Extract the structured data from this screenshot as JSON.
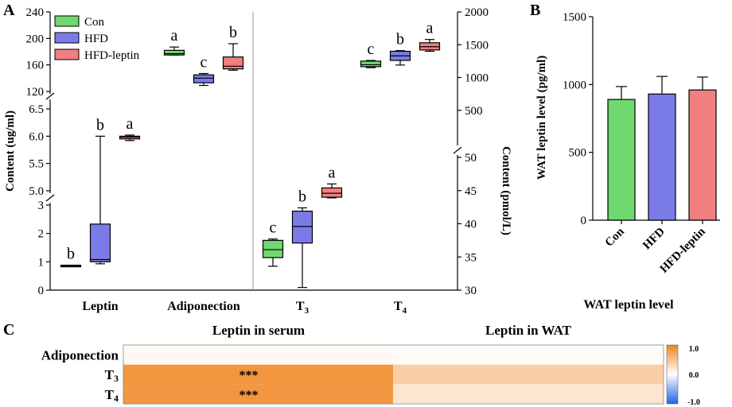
{
  "chart_data": [
    {
      "type": "box",
      "panel": "A",
      "categories": [
        "Leptin",
        "Adiponection",
        "T3",
        "T4"
      ],
      "category_subscripts": [
        "",
        "",
        "3",
        "4"
      ],
      "series": [
        "Con",
        "HFD",
        "HFD-leptin"
      ],
      "colors": [
        "#6fd86f",
        "#7b7be8",
        "#f07f7f"
      ],
      "left_axis": {
        "label": "Content (ug/ml)",
        "segments": [
          {
            "ticks": [
              "0",
              "1",
              "2",
              "3"
            ],
            "range": [
              0,
              3
            ]
          },
          {
            "ticks": [
              "5.0",
              "5.5",
              "6.0",
              "6.5"
            ],
            "range": [
              5.0,
              6.5
            ]
          },
          {
            "ticks": [
              "120",
              "160",
              "200",
              "240"
            ],
            "range": [
              120,
              240
            ]
          }
        ]
      },
      "right_axis": {
        "label": "Content (pmol/L)",
        "segments": [
          {
            "ticks": [
              "30",
              "35",
              "40",
              "45",
              "50"
            ],
            "range": [
              30,
              50
            ]
          },
          {
            "ticks": [
              "500",
              "1000",
              "1500",
              "2000"
            ],
            "range": [
              0,
              2000
            ]
          }
        ]
      },
      "boxes": {
        "Leptin": [
          {
            "min": 0.84,
            "q1": 0.85,
            "median": 0.86,
            "q3": 0.88,
            "max": 0.88,
            "letter": "b"
          },
          {
            "min": 0.93,
            "q1": 1.0,
            "median": 1.08,
            "q3": 2.33,
            "max": 6.0,
            "letter": "b"
          },
          {
            "min": 5.92,
            "q1": 5.95,
            "median": 5.98,
            "q3": 6.0,
            "max": 6.02,
            "letter": "a"
          }
        ],
        "Adiponection": [
          {
            "min": 175,
            "q1": 175,
            "median": 177,
            "q3": 182,
            "max": 187,
            "letter": "a"
          },
          {
            "min": 129,
            "q1": 133,
            "median": 140,
            "q3": 145,
            "max": 147,
            "letter": "c"
          },
          {
            "min": 152,
            "q1": 154,
            "median": 158,
            "q3": 172,
            "max": 192,
            "letter": "b"
          }
        ],
        "T3": [
          {
            "min": 33.6,
            "q1": 34.9,
            "median": 36.1,
            "q3": 37.5,
            "max": 37.7,
            "letter": "c"
          },
          {
            "min": 30.4,
            "q1": 37.1,
            "median": 39.6,
            "q3": 41.9,
            "max": 42.4,
            "letter": "b"
          },
          {
            "min": 43.9,
            "q1": 44.0,
            "median": 44.6,
            "q3": 45.4,
            "max": 46.0,
            "letter": "a"
          }
        ],
        "T4": [
          {
            "min": 1150,
            "q1": 1165,
            "median": 1195,
            "q3": 1250,
            "max": 1260,
            "letter": "c"
          },
          {
            "min": 1190,
            "q1": 1260,
            "median": 1330,
            "q3": 1400,
            "max": 1410,
            "letter": "b"
          },
          {
            "min": 1400,
            "q1": 1420,
            "median": 1470,
            "q3": 1530,
            "max": 1580,
            "letter": "a"
          }
        ]
      }
    },
    {
      "type": "bar",
      "panel": "B",
      "categories": [
        "Con",
        "HFD",
        "HFD-leptin"
      ],
      "values": [
        890,
        930,
        960
      ],
      "errors": [
        95,
        130,
        95
      ],
      "colors": [
        "#6fd86f",
        "#7b7be8",
        "#f07f7f"
      ],
      "ylabel": "WAT leptin level (pg/ml)",
      "xlabel": "WAT leptin level",
      "ylim": [
        0,
        1500
      ],
      "yticks": [
        "0",
        "500",
        "1000",
        "1500"
      ]
    },
    {
      "type": "heatmap",
      "panel": "C",
      "columns": [
        "Leptin in serum",
        "Leptin in WAT"
      ],
      "rows": [
        "Adiponection",
        "T3",
        "T4"
      ],
      "row_subscripts": [
        "",
        "3",
        "4"
      ],
      "values": [
        [
          0.05,
          0.03
        ],
        [
          0.85,
          0.4
        ],
        [
          0.85,
          0.2
        ]
      ],
      "annotations": [
        [
          "",
          ""
        ],
        [
          "***",
          ""
        ],
        [
          "***",
          ""
        ]
      ],
      "colorbar": {
        "min": -1.0,
        "max": 1.0,
        "ticks": [
          "1.0",
          "0.0",
          "-1.0"
        ]
      }
    }
  ],
  "panel_labels": {
    "a": "A",
    "b": "B",
    "c": "C"
  }
}
